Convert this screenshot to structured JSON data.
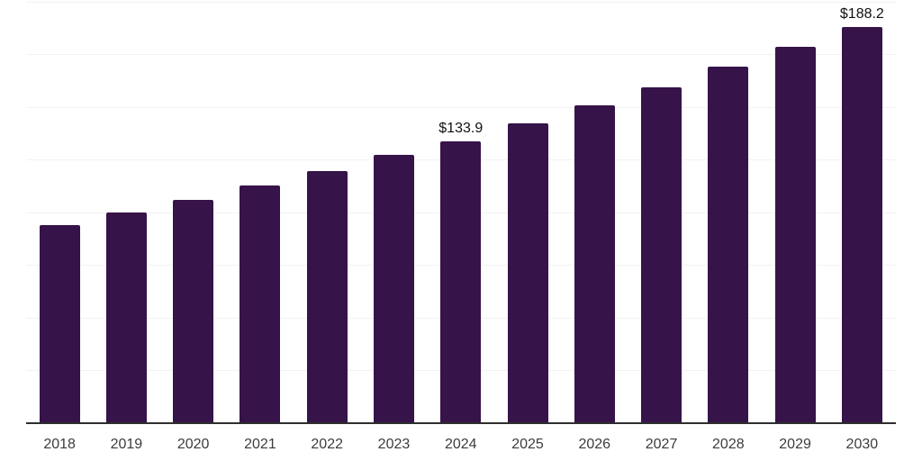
{
  "chart_data": {
    "type": "bar",
    "title": "",
    "xlabel": "",
    "ylabel": "",
    "categories": [
      "2018",
      "2019",
      "2020",
      "2021",
      "2022",
      "2023",
      "2024",
      "2025",
      "2026",
      "2027",
      "2028",
      "2029",
      "2030"
    ],
    "values": [
      93.8,
      100.1,
      105.9,
      112.8,
      119.7,
      127.1,
      133.9,
      142.4,
      150.8,
      159.4,
      169.1,
      178.7,
      188.2
    ],
    "value_prefix": "$",
    "data_labels": [
      {
        "category": "2024",
        "label": "$133.9"
      },
      {
        "category": "2030",
        "label": "$188.2"
      }
    ],
    "ylim": [
      0,
      200
    ],
    "grid_step": 25,
    "grid": "horizontal",
    "y_axis_labels_shown": false,
    "legend_position": "none",
    "colors": {
      "bar": "#361349",
      "axis_line": "#2e2e2e",
      "grid_line": "#f2f2f2",
      "tick_label": "#3c3c3c",
      "data_label": "#111111",
      "background": "#ffffff"
    }
  }
}
